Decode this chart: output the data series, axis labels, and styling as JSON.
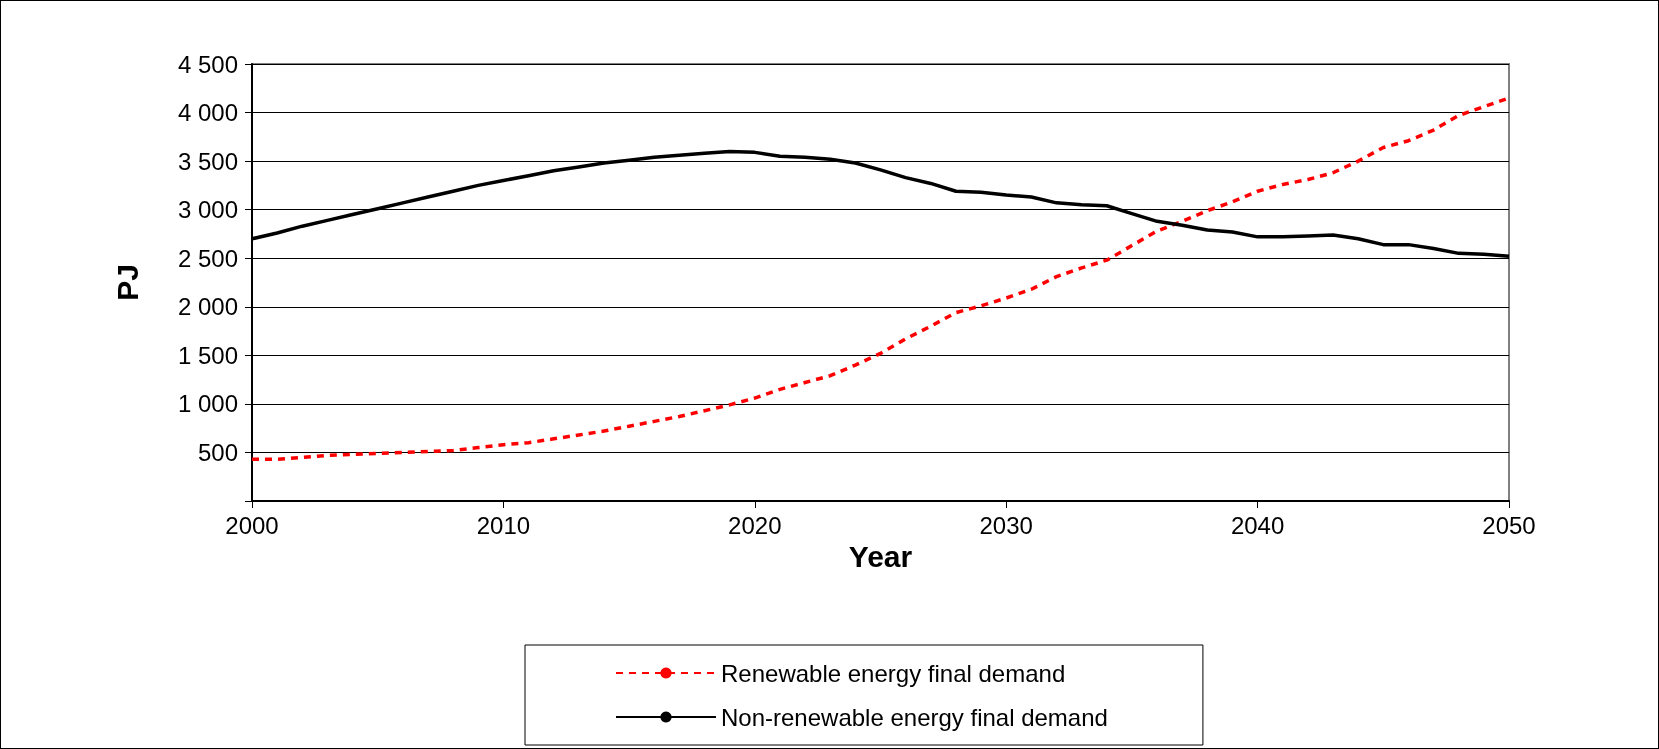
{
  "chart_data": {
    "type": "line",
    "xlabel": "Year",
    "ylabel": "PJ",
    "x": [
      2000,
      2001,
      2002,
      2003,
      2004,
      2005,
      2006,
      2007,
      2008,
      2009,
      2010,
      2011,
      2012,
      2013,
      2014,
      2015,
      2016,
      2017,
      2018,
      2019,
      2020,
      2021,
      2022,
      2023,
      2024,
      2025,
      2026,
      2027,
      2028,
      2029,
      2030,
      2031,
      2032,
      2033,
      2034,
      2035,
      2036,
      2037,
      2038,
      2039,
      2040,
      2041,
      2042,
      2043,
      2044,
      2045,
      2046,
      2047,
      2048,
      2049,
      2050
    ],
    "series": [
      {
        "name": "Renewable energy final demand",
        "color": "#ff0000",
        "line_style": "dashed",
        "values": [
          430,
          430,
          450,
          470,
          480,
          490,
          500,
          510,
          520,
          550,
          580,
          600,
          640,
          680,
          720,
          770,
          820,
          870,
          930,
          990,
          1060,
          1150,
          1220,
          1290,
          1400,
          1520,
          1670,
          1800,
          1940,
          2010,
          2090,
          2180,
          2310,
          2400,
          2480,
          2630,
          2780,
          2880,
          2990,
          3080,
          3190,
          3260,
          3310,
          3380,
          3500,
          3640,
          3710,
          3820,
          3970,
          4060,
          4150
        ]
      },
      {
        "name": "Non-renewable energy final demand",
        "color": "#000000",
        "line_style": "solid",
        "values": [
          2700,
          2760,
          2830,
          2890,
          2950,
          3010,
          3070,
          3130,
          3190,
          3250,
          3300,
          3350,
          3400,
          3440,
          3480,
          3510,
          3540,
          3560,
          3580,
          3600,
          3590,
          3550,
          3540,
          3520,
          3480,
          3410,
          3330,
          3270,
          3190,
          3180,
          3150,
          3130,
          3070,
          3050,
          3040,
          2960,
          2880,
          2840,
          2790,
          2770,
          2720,
          2720,
          2730,
          2740,
          2700,
          2640,
          2640,
          2600,
          2550,
          2540,
          2520
        ]
      }
    ],
    "xlim": [
      2000,
      2050
    ],
    "xticks": [
      2000,
      2010,
      2020,
      2030,
      2040,
      2050
    ],
    "ylim": [
      0,
      4500
    ],
    "yticks": [
      {
        "value": 0,
        "label": null
      },
      {
        "value": 500,
        "label": "500"
      },
      {
        "value": 1000,
        "label": "1 000"
      },
      {
        "value": 1500,
        "label": "1 500"
      },
      {
        "value": 2000,
        "label": "2 000"
      },
      {
        "value": 2500,
        "label": "2 500"
      },
      {
        "value": 3000,
        "label": "3 000"
      },
      {
        "value": 3500,
        "label": "3 500"
      },
      {
        "value": 4000,
        "label": "4 000"
      },
      {
        "value": 4500,
        "label": "4 500"
      }
    ],
    "grid": "y",
    "legend": "bottom",
    "marker": "none"
  }
}
